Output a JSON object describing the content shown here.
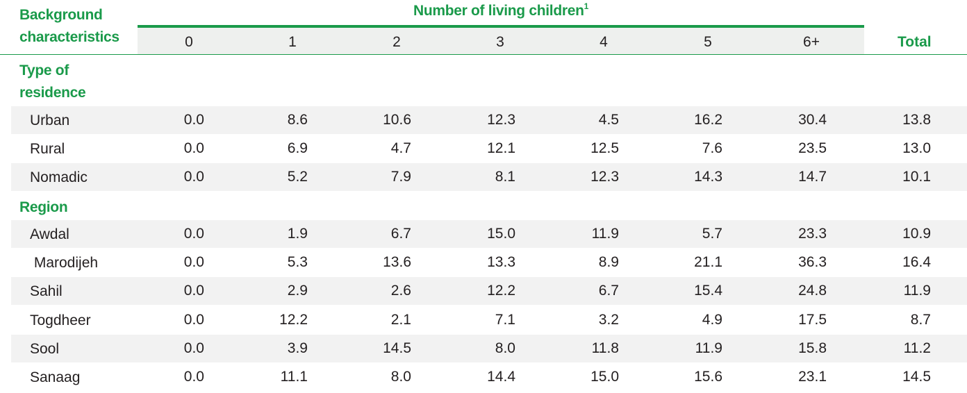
{
  "header": {
    "background_characteristics": [
      "Background",
      "characteristics"
    ],
    "number_of_living_children": "Number of living children",
    "footnote_mark": "1",
    "columns": [
      "0",
      "1",
      "2",
      "3",
      "4",
      "5",
      "6+"
    ],
    "total": "Total"
  },
  "sections": [
    {
      "title_lines": [
        "Type of",
        "residence"
      ],
      "rows": [
        {
          "label": "Urban",
          "values": [
            "0.0",
            "8.6",
            "10.6",
            "12.3",
            "4.5",
            "16.2",
            "30.4",
            "13.8"
          ]
        },
        {
          "label": "Rural",
          "values": [
            "0.0",
            "6.9",
            "4.7",
            "12.1",
            "12.5",
            "7.6",
            "23.5",
            "13.0"
          ]
        },
        {
          "label": "Nomadic",
          "values": [
            "0.0",
            "5.2",
            "7.9",
            "8.1",
            "12.3",
            "14.3",
            "14.7",
            "10.1"
          ]
        }
      ]
    },
    {
      "title_lines": [
        "Region"
      ],
      "rows": [
        {
          "label": "Awdal",
          "values": [
            "0.0",
            "1.9",
            "6.7",
            "15.0",
            "11.9",
            "5.7",
            "23.3",
            "10.9"
          ]
        },
        {
          "label": " Marodijeh",
          "values": [
            "0.0",
            "5.3",
            "13.6",
            "13.3",
            "8.9",
            "21.1",
            "36.3",
            "16.4"
          ]
        },
        {
          "label": "Sahil",
          "values": [
            "0.0",
            "2.9",
            "2.6",
            "12.2",
            "6.7",
            "15.4",
            "24.8",
            "11.9"
          ]
        },
        {
          "label": "Togdheer",
          "values": [
            "0.0",
            "12.2",
            "2.1",
            "7.1",
            "3.2",
            "4.9",
            "17.5",
            "8.7"
          ]
        },
        {
          "label": "Sool",
          "values": [
            "0.0",
            "3.9",
            "14.5",
            "8.0",
            "11.8",
            "11.9",
            "15.8",
            "11.2"
          ]
        },
        {
          "label": "Sanaag",
          "values": [
            "0.0",
            "11.1",
            "8.0",
            "14.4",
            "15.0",
            "15.6",
            "23.1",
            "14.5"
          ]
        }
      ]
    }
  ]
}
